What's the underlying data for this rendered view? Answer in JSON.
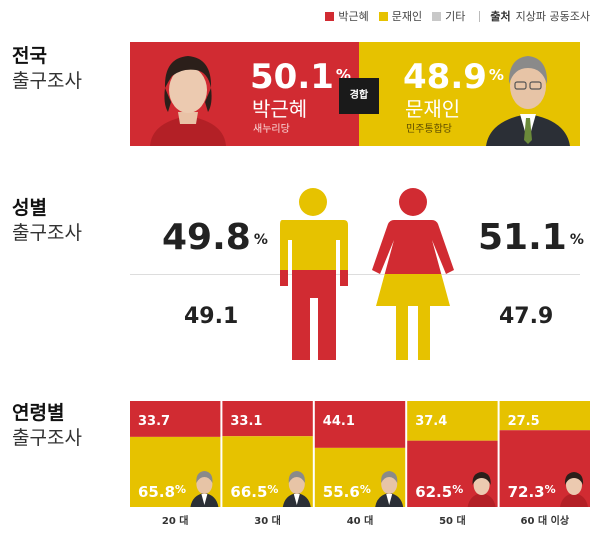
{
  "legend": {
    "items": [
      {
        "label": "박근혜",
        "color": "#d12b32"
      },
      {
        "label": "문재인",
        "color": "#e6c200"
      },
      {
        "label": "기타",
        "color": "#c8c8c8"
      }
    ],
    "source_key": "출처",
    "source_value": "지상파 공동조사"
  },
  "national": {
    "title": "전국",
    "subtitle": "출구조사",
    "vs_label": "경합",
    "left": {
      "pct": "50.1",
      "name": "박근혜",
      "party": "새누리당"
    },
    "right": {
      "pct": "48.9",
      "name": "문재인",
      "party": "민주통합당"
    },
    "pct_unit": "%"
  },
  "gender": {
    "title": "성별",
    "subtitle": "출구조사",
    "male": {
      "top_pct": "49.8",
      "bottom_value": "49.1"
    },
    "female": {
      "top_pct": "51.1",
      "bottom_value": "47.9"
    },
    "pct_unit": "%"
  },
  "age": {
    "title": "연령별",
    "subtitle": "출구조사"
  },
  "chart_data": [
    {
      "type": "bar",
      "name": "전국 출구조사",
      "categories": [
        "전국"
      ],
      "series": [
        {
          "name": "박근혜",
          "values": [
            50.1
          ],
          "color": "#d12b32"
        },
        {
          "name": "문재인",
          "values": [
            48.9
          ],
          "color": "#e6c200"
        }
      ]
    },
    {
      "type": "bar",
      "name": "성별 출구조사",
      "categories": [
        "남",
        "여"
      ],
      "series": [
        {
          "name": "박근혜",
          "values": [
            49.8,
            51.1
          ],
          "color": "#d12b32"
        },
        {
          "name": "문재인",
          "values": [
            49.1,
            47.9
          ],
          "color": "#e6c200"
        }
      ]
    },
    {
      "type": "bar",
      "name": "연령별 출구조사",
      "categories": [
        "20 대",
        "30 대",
        "40 대",
        "50 대",
        "60 대 이상"
      ],
      "series": [
        {
          "name": "박근혜",
          "values": [
            33.7,
            33.1,
            44.1,
            62.5,
            72.3
          ],
          "color": "#d12b32"
        },
        {
          "name": "문재인",
          "values": [
            65.8,
            66.5,
            55.6,
            37.4,
            27.5
          ],
          "color": "#e6c200"
        }
      ],
      "labels_top": [
        "33.7",
        "33.1",
        "44.1",
        "37.4",
        "27.5"
      ],
      "labels_bottom": [
        "65.8",
        "66.5",
        "55.6",
        "62.5",
        "72.3"
      ],
      "pct_unit": "%",
      "ylim": [
        0,
        100
      ]
    }
  ]
}
